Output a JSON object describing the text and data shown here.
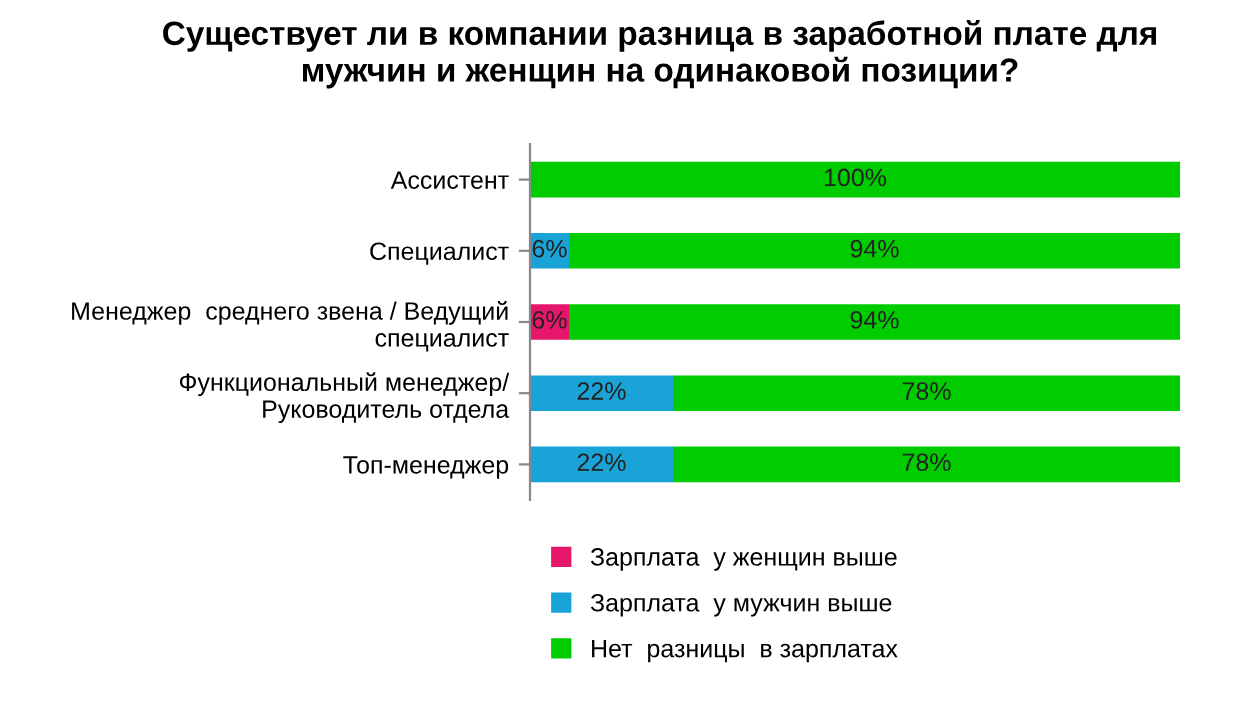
{
  "chart_data": {
    "type": "bar",
    "orientation": "horizontal",
    "stacked": true,
    "title": "Существует ли в компании разница в заработной плате для\nмужчин и женщин на одинаковой позиции?",
    "categories": [
      "Ассистент",
      "Специалист",
      "Менеджер  среднего звена / Ведущий\nспециалист",
      "Функциональный менеджер/\nРуководитель отдела",
      "Топ-менеджер"
    ],
    "series": [
      {
        "name": "Зарплата  у женщин выше",
        "color": "#e6176b",
        "values": [
          0,
          0,
          6,
          0,
          0
        ],
        "value_labels": [
          null,
          null,
          "6%",
          null,
          null
        ]
      },
      {
        "name": "Зарплата  у мужчин выше",
        "color": "#1aa3d6",
        "values": [
          0,
          6,
          0,
          22,
          22
        ],
        "value_labels": [
          null,
          "6%",
          null,
          "22%",
          "22%"
        ]
      },
      {
        "name": "Нет  разницы  в зарплатах",
        "color": "#00cc00",
        "values": [
          100,
          94,
          94,
          78,
          78
        ],
        "value_labels": [
          "100%",
          "94%",
          "94%",
          "78%",
          "78%"
        ]
      }
    ],
    "xlim": [
      0,
      100
    ],
    "tick_labels": "y",
    "grid": false,
    "legend": "bottom"
  }
}
